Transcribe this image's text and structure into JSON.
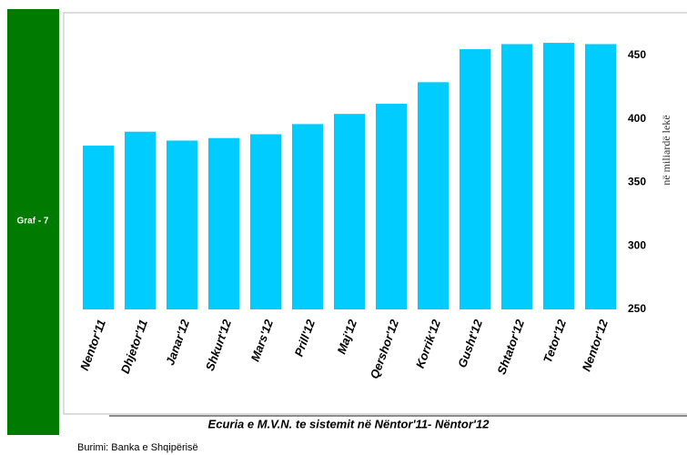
{
  "panel_label": "Graf - 7",
  "source": "Burimi: Banka e Shqipërisë",
  "chart_data": {
    "type": "bar",
    "title": "Ecuria e M.V.N. te sistemit në Nëntor'11- Nëntor'12",
    "y_axis_label": "në miliardë lekë",
    "categories": [
      "Nentor'11",
      "Dhjetor'11",
      "Janar'12",
      "Shkurt'12",
      "Mars'12",
      "Prill'12",
      "Maj'12",
      "Qershor'12",
      "Korrik'12",
      "Gusht'12",
      "Shtator'12",
      "Tetor'12",
      "Nentor'12"
    ],
    "values": [
      379,
      390,
      383,
      385,
      388,
      396,
      404,
      412,
      429,
      455,
      459,
      460,
      459
    ],
    "color": "#00ccff",
    "ylim": [
      250,
      483
    ],
    "yticks": [
      250,
      300,
      350,
      400,
      450
    ]
  }
}
